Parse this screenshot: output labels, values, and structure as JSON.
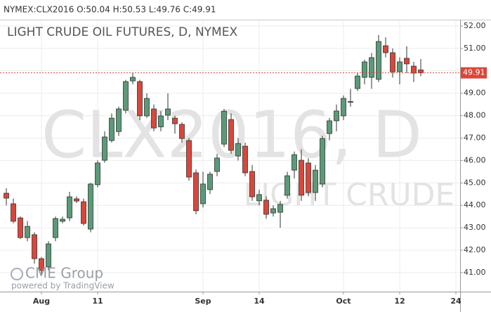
{
  "chart_data": {
    "type": "candlestick",
    "header": "NYMEX:CLX2016 O:50.04 H:50.53 L:49.76 C:49.91",
    "title": "LIGHT CRUDE OIL FUTURES, D, NYMEX",
    "watermark": "CLX2016, D",
    "watermark_subtitle": "LIGHT CRUDE",
    "logo": "CME Group",
    "credit": "powered by TradingView",
    "up_color": "#5b9a78",
    "down_color": "#d9473a",
    "grid": true,
    "last_price": 49.91,
    "ylim": [
      40.15,
      52.22
    ],
    "yticks": [
      {
        "value": 41,
        "label": "41.00"
      },
      {
        "value": 42,
        "label": "42.00"
      },
      {
        "value": 43,
        "label": "43.00"
      },
      {
        "value": 44,
        "label": "44.00"
      },
      {
        "value": 45,
        "label": "45.00"
      },
      {
        "value": 46,
        "label": "46.00"
      },
      {
        "value": 47,
        "label": "47.00"
      },
      {
        "value": 48,
        "label": "48.00"
      },
      {
        "value": 49,
        "label": "49.00"
      },
      {
        "value": 50,
        "label": "50.00"
      },
      {
        "value": 51,
        "label": "51.00"
      },
      {
        "value": 52,
        "label": "52.00"
      }
    ],
    "xlim": [
      -0.9,
      64.6
    ],
    "xticks": [
      {
        "value": 5,
        "label": "Aug"
      },
      {
        "value": 13,
        "label": "11"
      },
      {
        "value": 28,
        "label": "Sep"
      },
      {
        "value": 36,
        "label": "14"
      },
      {
        "value": 48,
        "label": "Oct"
      },
      {
        "value": 56,
        "label": "12"
      },
      {
        "value": 64,
        "label": "24"
      }
    ],
    "open": [
      44.54,
      44.07,
      43.44,
      42.56,
      42.69,
      41.62,
      41.25,
      42.56,
      43.29,
      43.44,
      44.29,
      44.16,
      42.94,
      44.92,
      46.01,
      46.89,
      47.29,
      48.24,
      49.55,
      49.52,
      47.99,
      48.3,
      47.5,
      48.02,
      47.89,
      47.61,
      46.89,
      45.45,
      44.07,
      44.7,
      45.51,
      46.73,
      47.83,
      46.2,
      46.64,
      45.51,
      44.2,
      44.23,
      43.66,
      43.69,
      44.45,
      45.57,
      46.01,
      45.89,
      44.57,
      44.95,
      47.2,
      47.77,
      47.99,
      48.6,
      49.21,
      49.71,
      49.71,
      49.62,
      51.12,
      50.81,
      49.96,
      50.56,
      50.21,
      50.04
    ],
    "high": [
      44.76,
      44.3,
      43.5,
      43.3,
      42.8,
      41.7,
      42.4,
      43.5,
      43.5,
      44.6,
      44.4,
      44.3,
      45.0,
      46.0,
      47.3,
      48.1,
      48.4,
      49.6,
      49.9,
      49.6,
      49.0,
      48.5,
      48.2,
      49.0,
      48.0,
      47.7,
      47.0,
      45.6,
      45.5,
      45.5,
      46.3,
      48.3,
      48.1,
      47.0,
      46.8,
      45.8,
      44.7,
      44.4,
      44.0,
      44.2,
      45.5,
      46.4,
      46.5,
      46.1,
      45.8,
      47.1,
      47.9,
      48.5,
      48.9,
      49.2,
      49.9,
      50.5,
      50.8,
      51.6,
      51.5,
      51.0,
      50.6,
      51.1,
      50.4,
      50.53
    ],
    "low": [
      44.0,
      43.2,
      42.5,
      42.4,
      41.4,
      40.87,
      41.1,
      42.4,
      43.2,
      43.3,
      44.1,
      43.1,
      42.8,
      44.8,
      45.9,
      46.8,
      47.1,
      48.1,
      49.4,
      47.8,
      47.9,
      47.3,
      47.3,
      47.8,
      47.2,
      46.8,
      45.1,
      43.6,
      43.9,
      44.5,
      45.3,
      46.6,
      46.3,
      46.0,
      45.3,
      44.2,
      44.0,
      43.4,
      43.5,
      43.0,
      44.3,
      45.2,
      44.2,
      44.4,
      44.2,
      44.8,
      46.9,
      47.3,
      47.8,
      48.4,
      49.1,
      49.4,
      49.2,
      49.5,
      50.6,
      49.7,
      49.4,
      49.9,
      49.5,
      49.76
    ],
    "close": [
      44.32,
      43.29,
      42.56,
      43.06,
      41.62,
      41.09,
      42.28,
      43.41,
      43.38,
      44.38,
      44.19,
      43.19,
      44.95,
      45.89,
      47.05,
      47.89,
      48.3,
      49.52,
      49.71,
      47.99,
      48.77,
      47.45,
      47.99,
      48.3,
      47.64,
      46.98,
      45.26,
      43.76,
      44.95,
      45.39,
      46.11,
      48.2,
      46.45,
      46.76,
      45.45,
      44.38,
      44.48,
      43.6,
      43.85,
      44.04,
      45.32,
      46.26,
      44.45,
      44.57,
      45.57,
      46.98,
      47.77,
      48.21,
      48.77,
      48.63,
      49.77,
      50.4,
      50.59,
      51.31,
      50.81,
      49.96,
      50.4,
      50.31,
      49.9,
      49.91
    ]
  }
}
